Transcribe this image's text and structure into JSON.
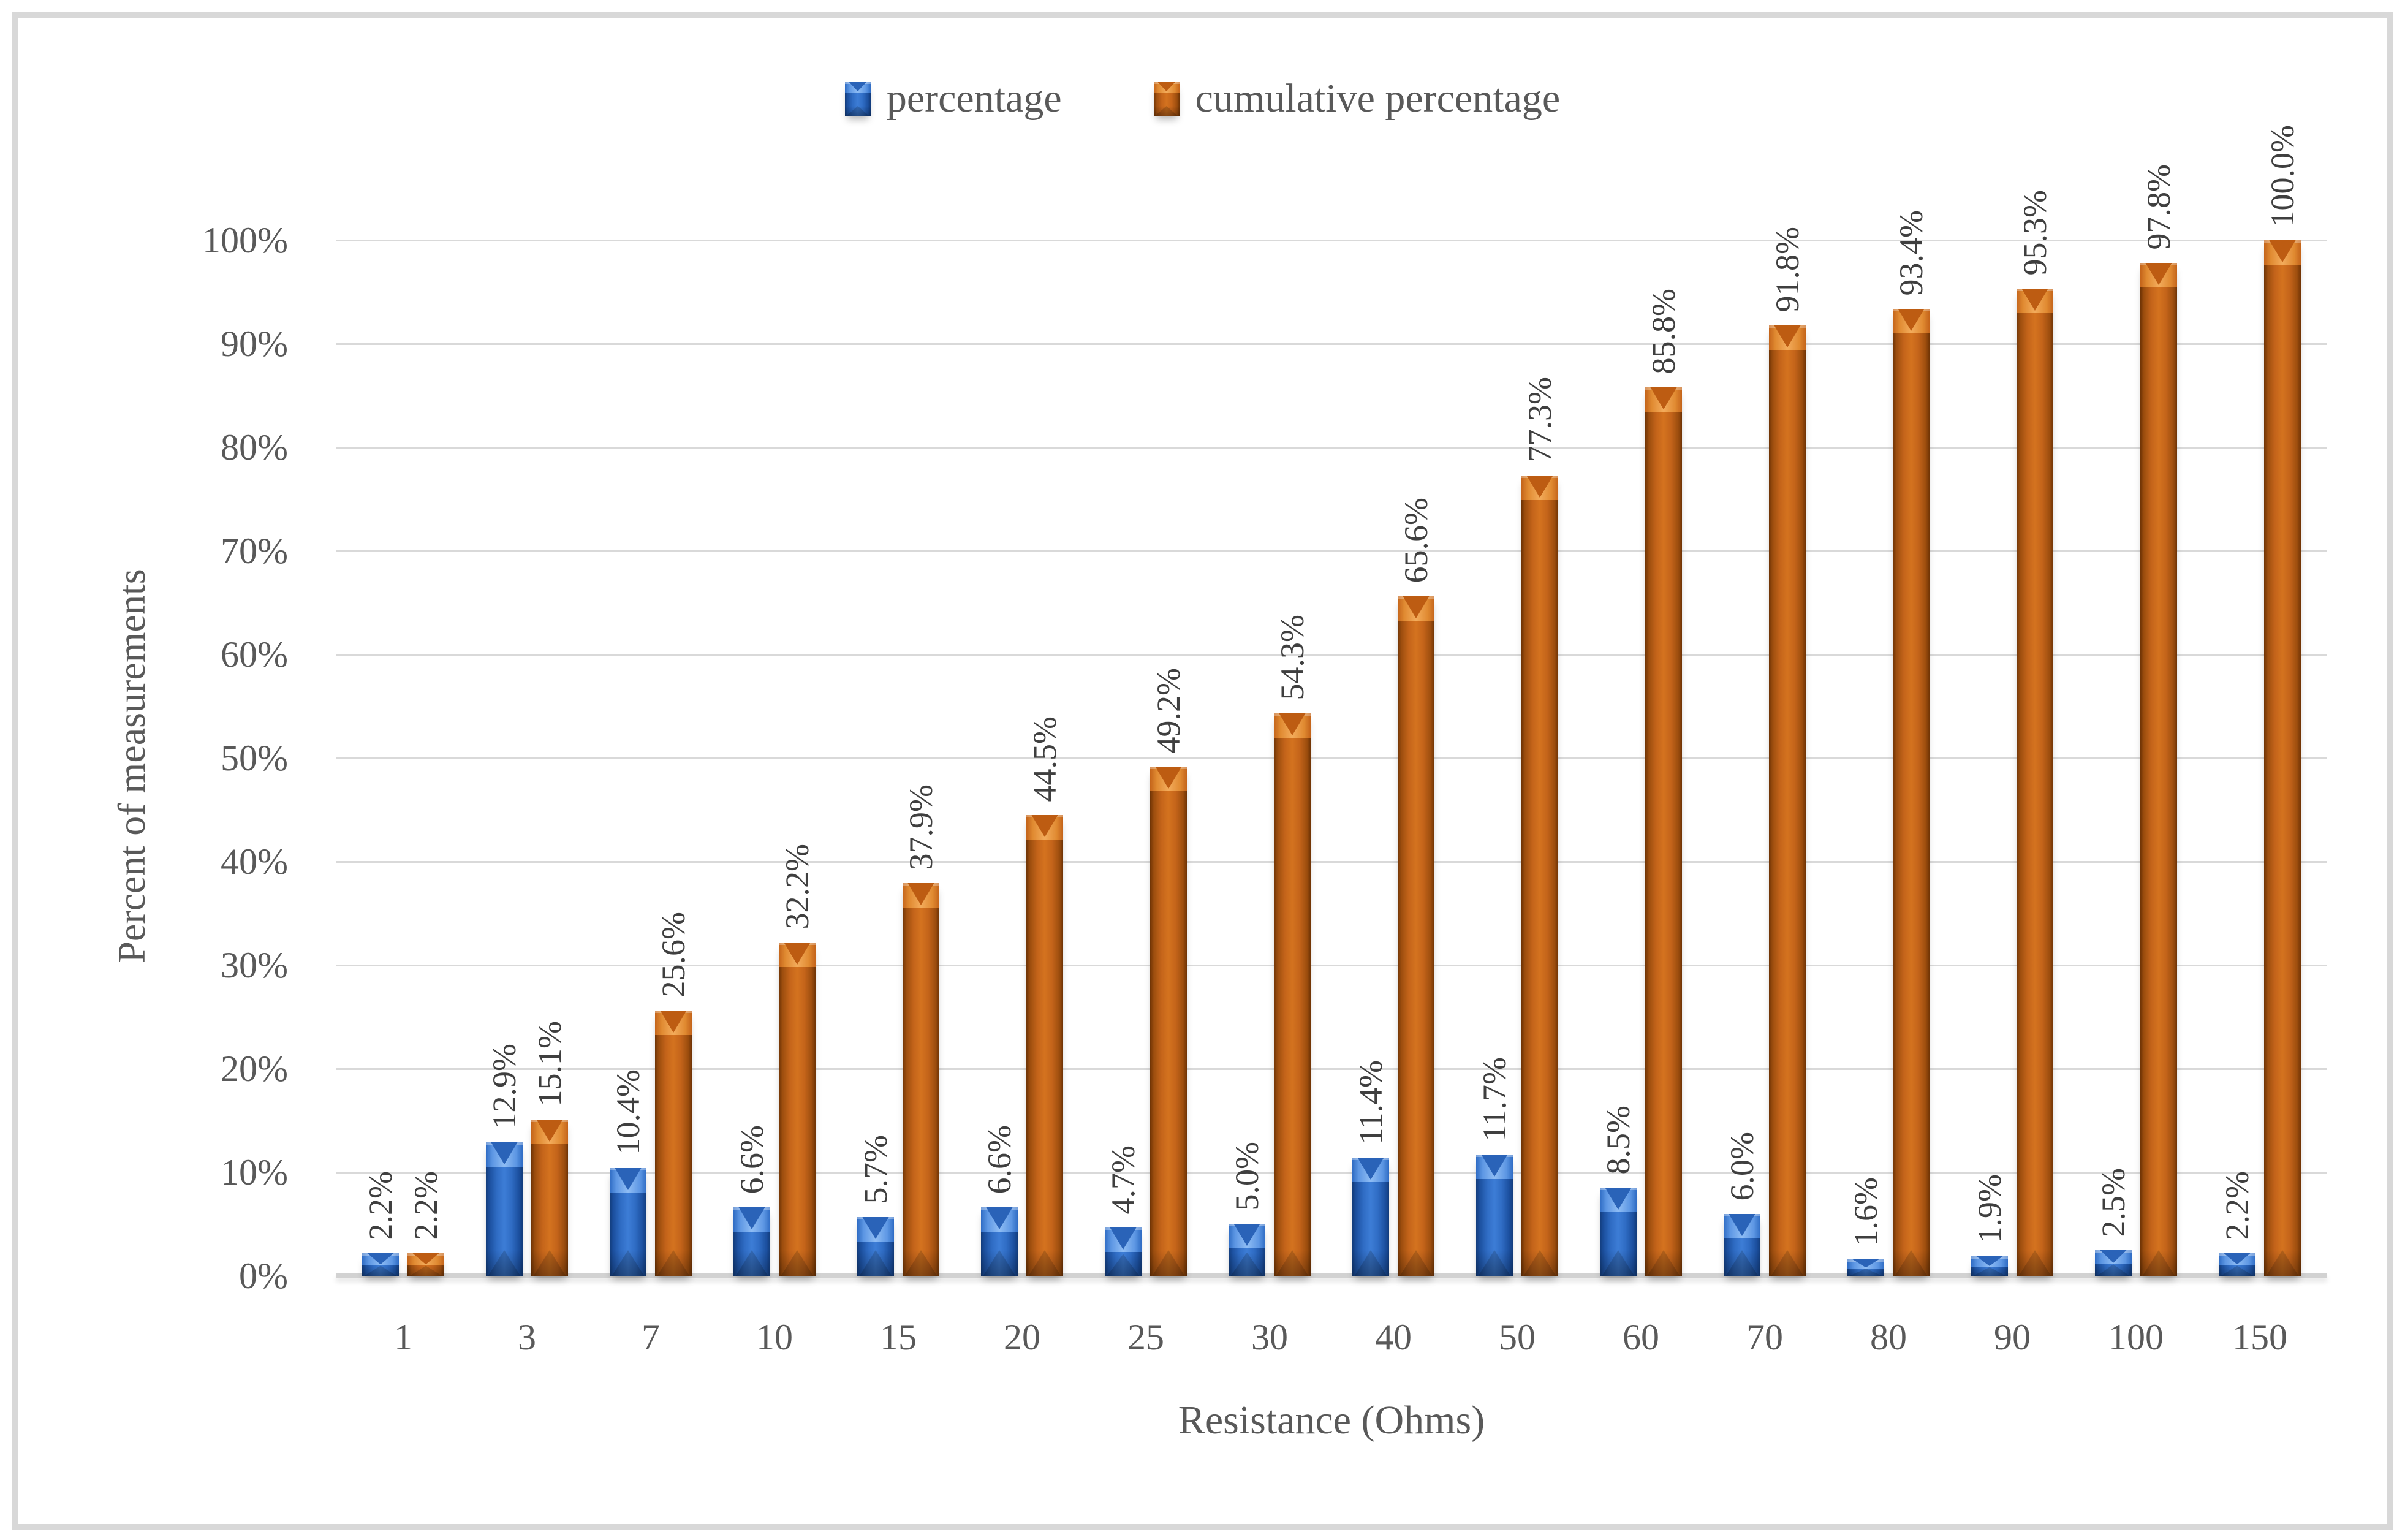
{
  "figure": {
    "border_color": "#d8d8d8",
    "background": "#ffffff",
    "text_color": "#595959",
    "data_label_color": "#3f3f3f",
    "gridline_color": "#d9d9d9"
  },
  "legend": {
    "items": [
      {
        "label": "percentage",
        "color": "#2a65bd",
        "swatch": "blue"
      },
      {
        "label": "cumulative percentage",
        "color": "#c4641a",
        "swatch": "orange"
      }
    ]
  },
  "chart_data": {
    "type": "bar",
    "title": "",
    "categories": [
      "1",
      "3",
      "7",
      "10",
      "15",
      "20",
      "25",
      "30",
      "40",
      "50",
      "60",
      "70",
      "80",
      "90",
      "100",
      "150"
    ],
    "series": [
      {
        "name": "percentage",
        "color": "#2a65bd",
        "values": [
          2.2,
          12.9,
          10.4,
          6.6,
          5.7,
          6.6,
          4.7,
          5.0,
          11.4,
          11.7,
          8.5,
          6.0,
          1.6,
          1.9,
          2.5,
          2.2
        ],
        "labels": [
          "2.2%",
          "12.9%",
          "10.4%",
          "6.6%",
          "5.7%",
          "6.6%",
          "4.7%",
          "5.0%",
          "11.4%",
          "11.7%",
          "8.5%",
          "6.0%",
          "1.6%",
          "1.9%",
          "2.5%",
          "2.2%"
        ]
      },
      {
        "name": "cumulative percentage",
        "color": "#c4641a",
        "values": [
          2.2,
          15.1,
          25.6,
          32.2,
          37.9,
          44.5,
          49.2,
          54.3,
          65.6,
          77.3,
          85.8,
          91.8,
          93.4,
          95.3,
          97.8,
          100.0
        ],
        "labels": [
          "2.2%",
          "15.1%",
          "25.6%",
          "32.2%",
          "37.9%",
          "44.5%",
          "49.2%",
          "54.3%",
          "65.6%",
          "77.3%",
          "85.8%",
          "91.8%",
          "93.4%",
          "95.3%",
          "97.8%",
          "100.0%"
        ]
      }
    ],
    "xlabel": "Resistance (Ohms)",
    "ylabel": "Percent of measurements",
    "ylim": [
      0,
      100
    ],
    "y_ticks": [
      "0%",
      "10%",
      "20%",
      "30%",
      "40%",
      "50%",
      "60%",
      "70%",
      "80%",
      "90%",
      "100%"
    ],
    "grid": true,
    "legend_position": "top"
  }
}
